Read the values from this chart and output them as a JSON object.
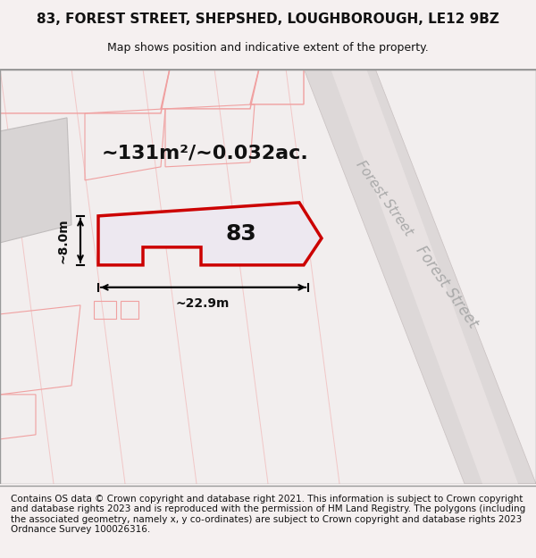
{
  "title": "83, FOREST STREET, SHEPSHED, LOUGHBOROUGH, LE12 9BZ",
  "subtitle": "Map shows position and indicative extent of the property.",
  "footer": "Contains OS data © Crown copyright and database right 2021. This information is subject to Crown copyright and database rights 2023 and is reproduced with the permission of HM Land Registry. The polygons (including the associated geometry, namely x, y co-ordinates) are subject to Crown copyright and database rights 2023 Ordnance Survey 100026316.",
  "area_label": "~131m²/~0.032ac.",
  "number_label": "83",
  "width_label": "~22.9m",
  "height_label": "~8.0m",
  "bg_color": "#f5f0f0",
  "map_bg": "#f5f0f0",
  "plot_fill": "#e8e0e8",
  "road_fill": "#d8d0d8",
  "border_color": "#ffffff",
  "red_outline": "#cc0000",
  "light_red": "#f0a0a0",
  "dark_text": "#111111",
  "gray_text": "#aaaaaa",
  "title_fontsize": 11,
  "subtitle_fontsize": 9,
  "footer_fontsize": 7.5
}
